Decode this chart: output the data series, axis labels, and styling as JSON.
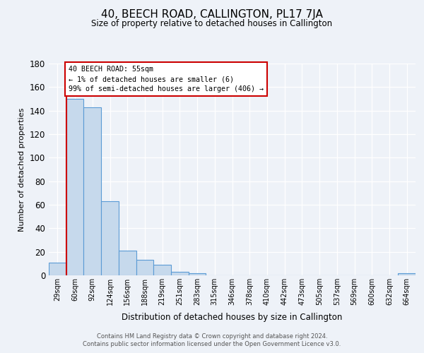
{
  "title": "40, BEECH ROAD, CALLINGTON, PL17 7JA",
  "subtitle": "Size of property relative to detached houses in Callington",
  "xlabel": "Distribution of detached houses by size in Callington",
  "ylabel": "Number of detached properties",
  "bin_labels": [
    "29sqm",
    "60sqm",
    "92sqm",
    "124sqm",
    "156sqm",
    "188sqm",
    "219sqm",
    "251sqm",
    "283sqm",
    "315sqm",
    "346sqm",
    "378sqm",
    "410sqm",
    "442sqm",
    "473sqm",
    "505sqm",
    "537sqm",
    "569sqm",
    "600sqm",
    "632sqm",
    "664sqm"
  ],
  "bar_values": [
    11,
    150,
    143,
    63,
    21,
    13,
    9,
    3,
    2,
    0,
    0,
    0,
    0,
    0,
    0,
    0,
    0,
    0,
    0,
    0,
    2
  ],
  "bar_color": "#c6d9ec",
  "bar_edgecolor": "#5b9bd5",
  "ylim": [
    0,
    180
  ],
  "yticks": [
    0,
    20,
    40,
    60,
    80,
    100,
    120,
    140,
    160,
    180
  ],
  "annotation_title": "40 BEECH ROAD: 55sqm",
  "annotation_line1": "← 1% of detached houses are smaller (6)",
  "annotation_line2": "99% of semi-detached houses are larger (406) →",
  "red_line_color": "#cc0000",
  "annotation_box_color": "#ffffff",
  "annotation_box_edgecolor": "#cc0000",
  "footer1": "Contains HM Land Registry data © Crown copyright and database right 2024.",
  "footer2": "Contains public sector information licensed under the Open Government Licence v3.0.",
  "background_color": "#eef2f8"
}
